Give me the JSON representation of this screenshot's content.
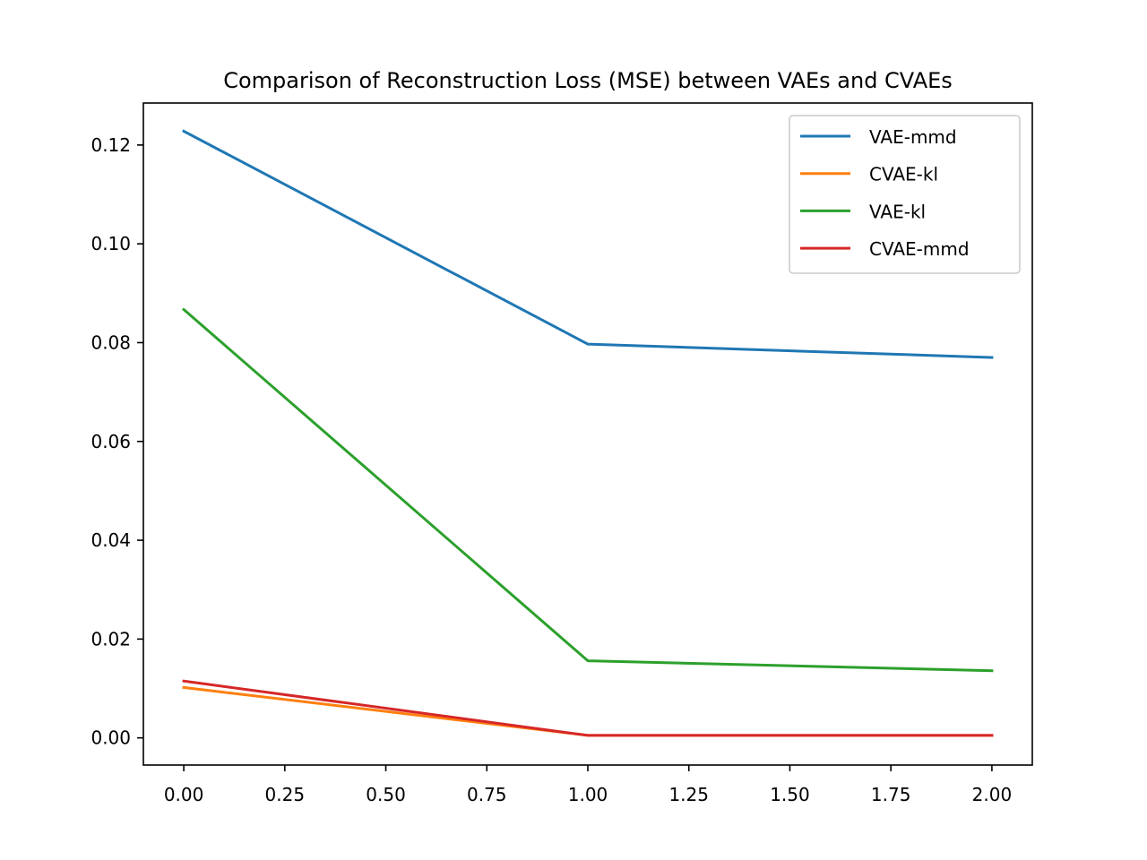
{
  "chart_data": {
    "type": "line",
    "title": "Comparison of Reconstruction Loss (MSE) between VAEs and CVAEs",
    "xlabel": "",
    "ylabel": "",
    "x": [
      0,
      1,
      2
    ],
    "xlim": [
      -0.1,
      2.1
    ],
    "ylim": [
      -0.0055,
      0.1285
    ],
    "xticks": [
      0.0,
      0.25,
      0.5,
      0.75,
      1.0,
      1.25,
      1.5,
      1.75,
      2.0
    ],
    "xtick_labels": [
      "0.00",
      "0.25",
      "0.50",
      "0.75",
      "1.00",
      "1.25",
      "1.50",
      "1.75",
      "2.00"
    ],
    "yticks": [
      0.0,
      0.02,
      0.04,
      0.06,
      0.08,
      0.1,
      0.12
    ],
    "ytick_labels": [
      "0.00",
      "0.02",
      "0.04",
      "0.06",
      "0.08",
      "0.10",
      "0.12"
    ],
    "grid": false,
    "legend_position": "top-right",
    "series": [
      {
        "name": "VAE-mmd",
        "color": "#1f77b4",
        "values": [
          0.1228,
          0.0797,
          0.077
        ]
      },
      {
        "name": "CVAE-kl",
        "color": "#ff7f0e",
        "values": [
          0.0102,
          0.0005,
          0.0005
        ]
      },
      {
        "name": "VAE-kl",
        "color": "#2ca02c",
        "values": [
          0.0867,
          0.0156,
          0.0136
        ]
      },
      {
        "name": "CVAE-mmd",
        "color": "#d62728",
        "values": [
          0.0115,
          0.0005,
          0.0005
        ]
      }
    ]
  }
}
